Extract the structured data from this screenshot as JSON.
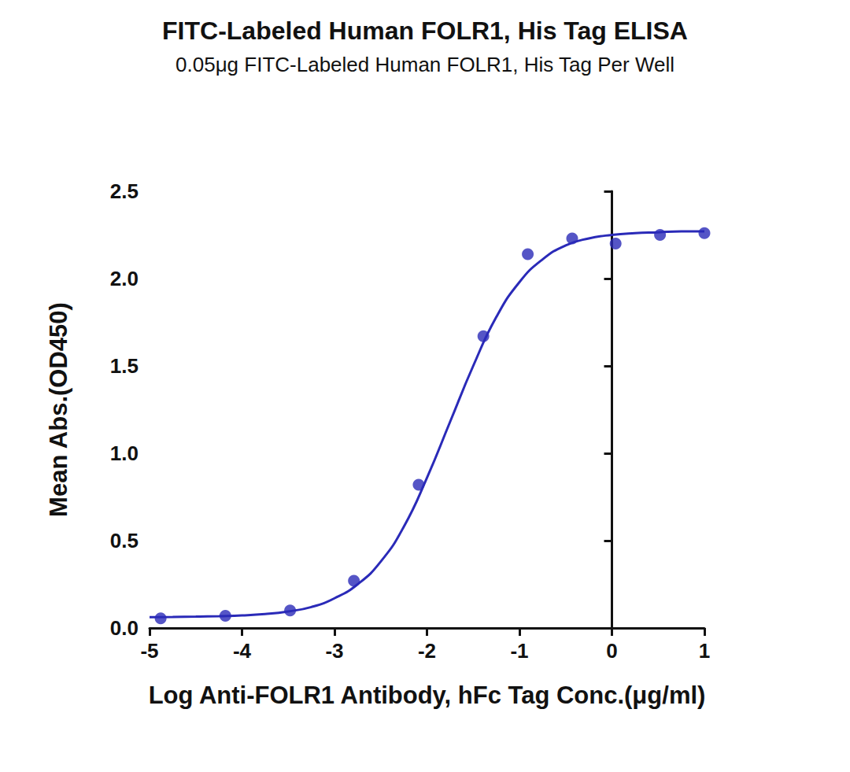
{
  "chart_data": {
    "type": "scatter",
    "title": "FITC-Labeled Human FOLR1, His Tag ELISA",
    "subtitle": "0.05μg FITC-Labeled Human FOLR1, His Tag Per Well",
    "x_label": "Log Anti-FOLR1 Antibody, hFc Tag Conc.(μg/ml)",
    "y_label": "Mean Abs.(OD450)",
    "xlim": [
      -5,
      1
    ],
    "xticks": [
      -5,
      -4,
      -3,
      -2,
      -1,
      0,
      1
    ],
    "ylim": [
      0,
      2.5
    ],
    "yticks": [
      {
        "value": 0,
        "label": "0.0"
      },
      0.5,
      {
        "value": 1,
        "label": "1.0"
      },
      1.5,
      {
        "value": 2,
        "label": "2.0"
      },
      2.5
    ],
    "grid": false,
    "series": [
      {
        "type": "scatter",
        "marker": "circle",
        "color": "#2a2ab8",
        "x": [
          -4.88,
          -4.18,
          -3.48,
          -2.79,
          -2.09,
          -1.39,
          -0.91,
          -0.43,
          0.04,
          0.52,
          1.0
        ],
        "values": [
          0.055,
          0.07,
          0.1,
          0.27,
          0.82,
          1.67,
          2.14,
          2.23,
          2.2,
          2.25,
          2.26
        ]
      },
      {
        "type": "line",
        "marker": "none",
        "line_style": "solid",
        "color": "#2a2ab8",
        "x": [
          -5,
          -4.75,
          -4.5,
          -4.25,
          -4,
          -3.75,
          -3.5,
          -3.25,
          -3,
          -2.75,
          -2.5,
          -2.25,
          -2,
          -1.75,
          -1.5,
          -1.25,
          -1,
          -0.75,
          -0.5,
          -0.25,
          0,
          0.25,
          0.5,
          0.75,
          1
        ],
        "values": [
          0.062,
          0.063,
          0.065,
          0.068,
          0.072,
          0.08,
          0.095,
          0.12,
          0.17,
          0.25,
          0.38,
          0.58,
          0.86,
          1.18,
          1.5,
          1.78,
          1.98,
          2.11,
          2.19,
          2.23,
          2.25,
          2.26,
          2.265,
          2.27,
          2.27
        ]
      }
    ]
  }
}
